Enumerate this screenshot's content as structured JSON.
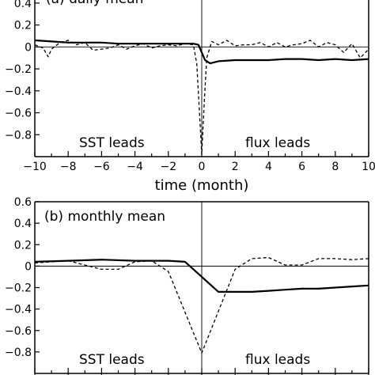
{
  "chart_data": [
    {
      "type": "line",
      "title": "(a) daily mean",
      "xlabel": "time (month)",
      "ylabel": "",
      "xlim": [
        -10,
        10
      ],
      "ylim": [
        -1.0,
        0.5
      ],
      "xticks": [
        "−10",
        "−8",
        "−6",
        "−4",
        "−2",
        "0",
        "2",
        "4",
        "6",
        "8",
        "10"
      ],
      "yticks": [
        "0.4",
        "0.2",
        "0",
        "−0.2",
        "−0.4",
        "−0.6",
        "−0.8"
      ],
      "annotations": [
        "SST leads",
        "flux leads"
      ],
      "zero_lines": true,
      "series": [
        {
          "style": "solid",
          "x": [
            -10,
            -9,
            -8,
            -7,
            -6,
            -5,
            -4,
            -3,
            -2,
            -1,
            -0.5,
            -0.2,
            0,
            0.2,
            0.5,
            1,
            2,
            3,
            4,
            5,
            6,
            7,
            8,
            9,
            10
          ],
          "y": [
            0.06,
            0.05,
            0.04,
            0.04,
            0.04,
            0.03,
            0.03,
            0.03,
            0.03,
            0.03,
            0.03,
            0.02,
            -0.05,
            -0.12,
            -0.15,
            -0.13,
            -0.12,
            -0.12,
            -0.12,
            -0.11,
            -0.11,
            -0.12,
            -0.11,
            -0.12,
            -0.11
          ]
        },
        {
          "style": "dashed",
          "x": [
            -10,
            -9.5,
            -9.2,
            -9,
            -8.5,
            -8,
            -7.5,
            -7,
            -6.5,
            -6,
            -5.5,
            -5,
            -4.5,
            -4,
            -3.5,
            -3,
            -2.5,
            -2,
            -1.5,
            -1,
            -0.5,
            -0.3,
            -0.15,
            0,
            0.15,
            0.3,
            0.6,
            1,
            1.5,
            2,
            2.5,
            3,
            3.5,
            4,
            4.5,
            5,
            5.5,
            6,
            6.5,
            7,
            7.5,
            8,
            8.5,
            9,
            9.5,
            10
          ],
          "y": [
            0.02,
            -0.01,
            -0.09,
            -0.02,
            0.04,
            0.06,
            0.02,
            0.04,
            -0.03,
            -0.02,
            -0.01,
            0.02,
            -0.02,
            0.01,
            0.03,
            -0.01,
            0.01,
            0.02,
            0.01,
            0.03,
            0.02,
            -0.15,
            -0.55,
            -0.98,
            -0.5,
            -0.1,
            0.05,
            0.02,
            0.06,
            0.01,
            0.02,
            0.02,
            0.04,
            0.0,
            0.04,
            0.0,
            0.02,
            0.03,
            0.06,
            0.0,
            0.04,
            0.02,
            -0.05,
            0.03,
            -0.1,
            -0.02
          ]
        }
      ]
    },
    {
      "type": "line",
      "title": "(b) monthly mean",
      "xlabel": "",
      "ylabel": "",
      "xlim": [
        -10,
        10
      ],
      "ylim": [
        -1.0,
        0.6
      ],
      "xticks": [],
      "yticks": [
        "0.6",
        "0.4",
        "0.2",
        "0",
        "−0.2",
        "−0.4",
        "−0.6",
        "−0.8"
      ],
      "annotations": [
        "SST leads",
        "flux leads"
      ],
      "zero_lines": true,
      "series": [
        {
          "style": "solid",
          "x": [
            -10,
            -8,
            -6,
            -4,
            -2,
            -1,
            1,
            2,
            3,
            4,
            5,
            6,
            7,
            8,
            9,
            10
          ],
          "y": [
            0.04,
            0.05,
            0.06,
            0.05,
            0.05,
            0.04,
            -0.24,
            -0.24,
            -0.24,
            -0.23,
            -0.22,
            -0.21,
            -0.21,
            -0.2,
            -0.19,
            -0.18
          ]
        },
        {
          "style": "dashed",
          "x": [
            -10,
            -8,
            -6,
            -5,
            -4,
            -3,
            -2,
            0,
            2,
            3,
            4,
            5,
            6,
            7,
            8,
            9,
            10
          ],
          "y": [
            0.03,
            0.05,
            -0.03,
            -0.03,
            0.04,
            0.05,
            -0.05,
            -0.81,
            -0.03,
            0.07,
            0.08,
            0.01,
            0.01,
            0.07,
            0.07,
            0.06,
            0.07
          ]
        }
      ]
    }
  ]
}
